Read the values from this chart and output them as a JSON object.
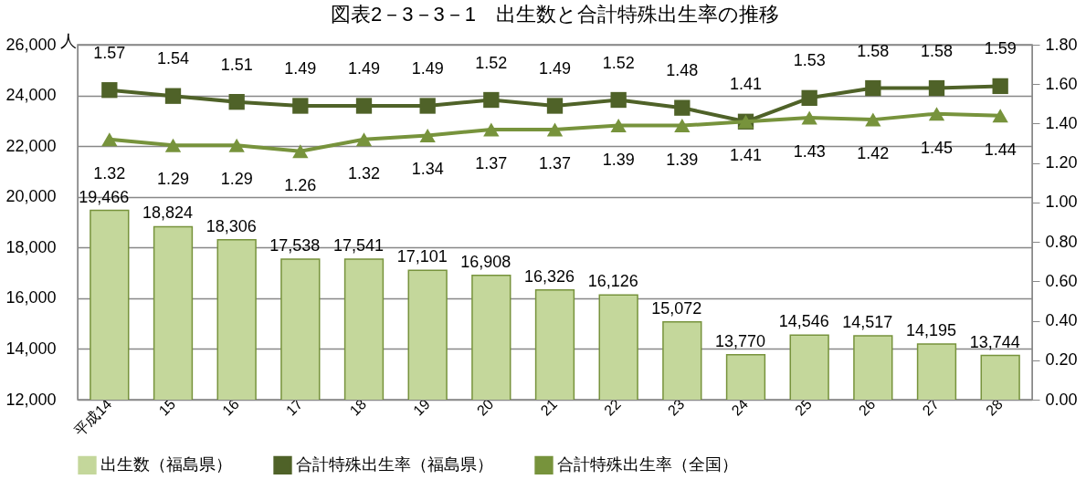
{
  "chart_data": {
    "type": "bar",
    "title": "図表2－3－3－1　出生数と合計特殊出生率の推移",
    "ylabel": "人",
    "categories": [
      "平成14",
      "15",
      "16",
      "17",
      "18",
      "19",
      "20",
      "21",
      "22",
      "23",
      "24",
      "25",
      "26",
      "27",
      "28"
    ],
    "series": [
      {
        "name": "出生数（福島県）",
        "color": "#c4d79b",
        "values": [
          19466,
          18824,
          18306,
          17538,
          17541,
          17101,
          16908,
          16326,
          16126,
          15072,
          13770,
          14546,
          14517,
          14195,
          13744
        ],
        "value_labels": [
          "19,466",
          "18,824",
          "18,306",
          "17,538",
          "17,541",
          "17,101",
          "16,908",
          "16,326",
          "16,126",
          "15,072",
          "13,770",
          "14,546",
          "14,517",
          "14,195",
          "13,744"
        ]
      },
      {
        "name": "合計特殊出生率（福島県）",
        "type": "line",
        "axis": "y2",
        "color": "#4f6228",
        "marker": "square",
        "values": [
          1.57,
          1.54,
          1.51,
          1.49,
          1.49,
          1.49,
          1.52,
          1.49,
          1.52,
          1.48,
          1.41,
          1.53,
          1.58,
          1.58,
          1.59
        ]
      },
      {
        "name": "合計特殊出生率（全国）",
        "type": "line",
        "axis": "y2",
        "color": "#77933c",
        "marker": "triangle",
        "values": [
          1.32,
          1.29,
          1.29,
          1.26,
          1.32,
          1.34,
          1.37,
          1.37,
          1.39,
          1.39,
          1.41,
          1.43,
          1.42,
          1.45,
          1.44
        ]
      }
    ],
    "ylim": [
      12000,
      26000
    ],
    "yticks": [
      {
        "value": 12000,
        "label": "12,000"
      },
      {
        "value": 14000,
        "label": "14,000"
      },
      {
        "value": 16000,
        "label": "16,000"
      },
      {
        "value": 18000,
        "label": "18,000"
      },
      {
        "value": 20000,
        "label": "20,000"
      },
      {
        "value": 22000,
        "label": "22,000"
      },
      {
        "value": 24000,
        "label": "24,000"
      },
      {
        "value": 26000,
        "label": "26,000"
      }
    ],
    "y2lim": [
      0,
      1.8
    ],
    "y2ticks": [
      {
        "value": 0,
        "label": "0.00"
      },
      {
        "value": 0.2,
        "label": "0.20"
      },
      {
        "value": 0.4,
        "label": "0.40"
      },
      {
        "value": 0.6,
        "label": "0.60"
      },
      {
        "value": 0.8,
        "label": "0.80"
      },
      {
        "value": 1,
        "label": "1.00"
      },
      {
        "value": 1.2,
        "label": "1.20"
      },
      {
        "value": 1.4,
        "label": "1.40"
      },
      {
        "value": 1.6,
        "label": "1.60"
      },
      {
        "value": 1.8,
        "label": "1.80"
      }
    ],
    "data_labels": true,
    "grid": "y",
    "legend": "bottom"
  }
}
